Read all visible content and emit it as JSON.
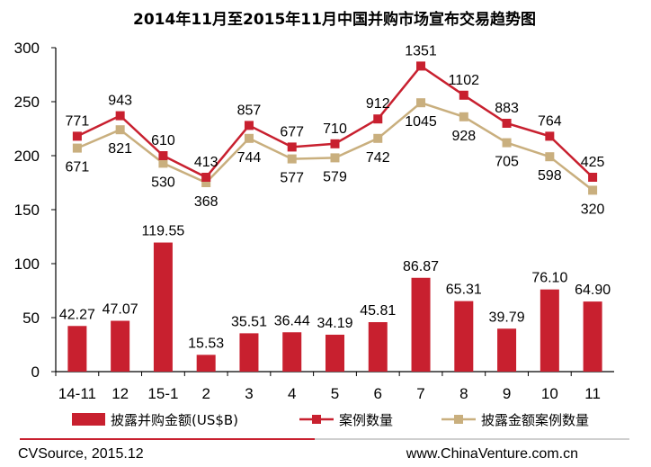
{
  "chart_data": {
    "type": "bar+line",
    "title": "2014年11月至2015年11月中国并购市场宣布交易趋势图",
    "categories": [
      "14-11",
      "12",
      "15-1",
      "2",
      "3",
      "4",
      "5",
      "6",
      "7",
      "8",
      "9",
      "10",
      "11"
    ],
    "ylim": [
      0,
      300
    ],
    "yticks": [
      0,
      50,
      100,
      150,
      200,
      250,
      300
    ],
    "series": [
      {
        "name": "披露并购金额(US$B)",
        "type": "bar",
        "color": "#C8202F",
        "values": [
          42.27,
          47.07,
          119.55,
          15.53,
          35.51,
          36.44,
          34.19,
          45.81,
          86.87,
          65.31,
          39.79,
          76.1,
          64.9
        ],
        "labels": [
          "42.27",
          "47.07",
          "119.55",
          "15.53",
          "35.51",
          "36.44",
          "34.19",
          "45.81",
          "86.87",
          "65.31",
          "39.79",
          "76.10",
          "64.90"
        ]
      },
      {
        "name": "案例数量",
        "type": "line",
        "color": "#C8202F",
        "values": [
          771,
          943,
          610,
          413,
          857,
          677,
          710,
          912,
          1351,
          1102,
          883,
          764,
          425
        ],
        "plotted": [
          218,
          237,
          200,
          180,
          228,
          208,
          211,
          234,
          283,
          256,
          230,
          218,
          180
        ],
        "labels": [
          "771",
          "943",
          "610",
          "413",
          "857",
          "677",
          "710",
          "912",
          "1351",
          "1102",
          "883",
          "764",
          "425"
        ]
      },
      {
        "name": "披露金额案例数量",
        "type": "line",
        "color": "#C9AF7E",
        "values": [
          671,
          821,
          530,
          368,
          744,
          577,
          579,
          742,
          1045,
          928,
          705,
          598,
          320
        ],
        "plotted": [
          207,
          224,
          193,
          175,
          216,
          197,
          198,
          216,
          249,
          236,
          212,
          199,
          168
        ],
        "labels": [
          "671",
          "821",
          "530",
          "368",
          "744",
          "577",
          "579",
          "742",
          "1045",
          "928",
          "705",
          "598",
          "320"
        ]
      }
    ],
    "legend": [
      "披露并购金额(US$B)",
      "案例数量",
      "披露金额案例数量"
    ],
    "legend_position": "bottom"
  },
  "footer": {
    "source": "CVSource, 2015.12",
    "website": "www.ChinaVenture.com.cn"
  }
}
